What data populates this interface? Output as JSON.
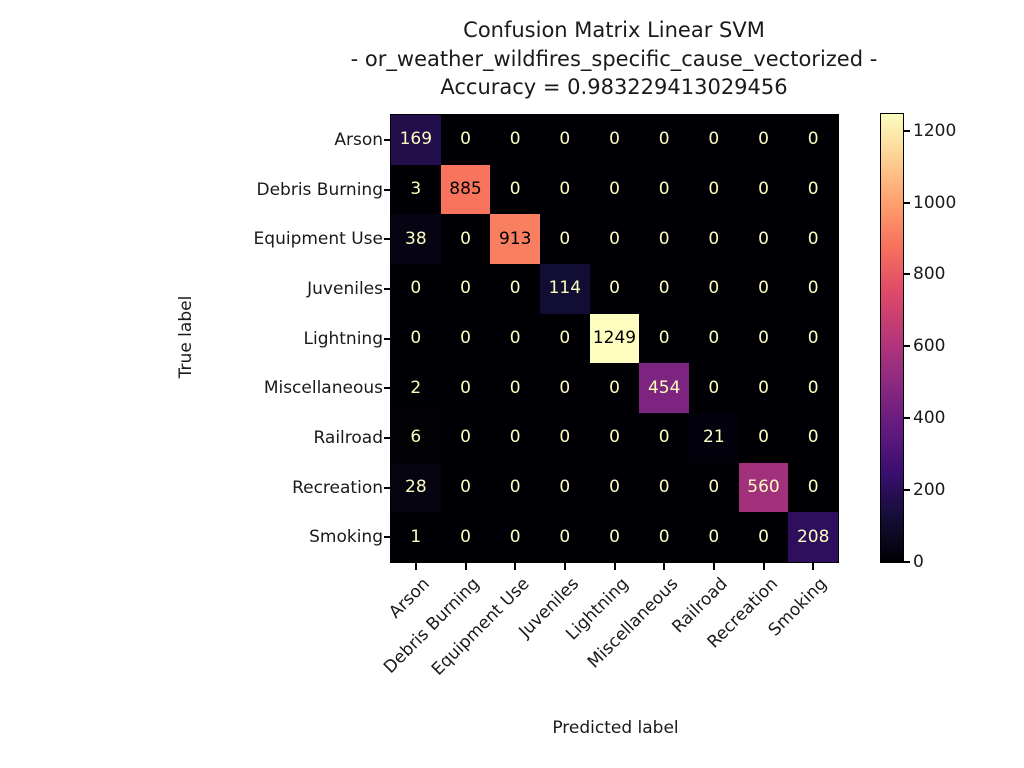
{
  "figure": {
    "title_line1": "Confusion Matrix Linear SVM",
    "title_line2": "- or_weather_wildfires_specific_cause_vectorized -",
    "title_line3": "Accuracy = 0.983229413029456",
    "xlabel": "Predicted label",
    "ylabel": "True label"
  },
  "chart_data": {
    "type": "heatmap",
    "title": "Confusion Matrix Linear SVM - or_weather_wildfires_specific_cause_vectorized - Accuracy = 0.983229413029456",
    "model": "Linear SVM",
    "accuracy_shown": "0.983229413029456",
    "xlabel": "Predicted label",
    "ylabel": "True label",
    "categories": [
      "Arson",
      "Debris Burning",
      "Equipment Use",
      "Juveniles",
      "Lightning",
      "Miscellaneous",
      "Railroad",
      "Recreation",
      "Smoking"
    ],
    "matrix": [
      [
        169,
        0,
        0,
        0,
        0,
        0,
        0,
        0,
        0
      ],
      [
        3,
        885,
        0,
        0,
        0,
        0,
        0,
        0,
        0
      ],
      [
        38,
        0,
        913,
        0,
        0,
        0,
        0,
        0,
        0
      ],
      [
        0,
        0,
        0,
        114,
        0,
        0,
        0,
        0,
        0
      ],
      [
        0,
        0,
        0,
        0,
        1249,
        0,
        0,
        0,
        0
      ],
      [
        2,
        0,
        0,
        0,
        0,
        454,
        0,
        0,
        0
      ],
      [
        6,
        0,
        0,
        0,
        0,
        0,
        21,
        0,
        0
      ],
      [
        28,
        0,
        0,
        0,
        0,
        0,
        0,
        560,
        0
      ],
      [
        1,
        0,
        0,
        0,
        0,
        0,
        0,
        0,
        208
      ]
    ],
    "vmin": 0,
    "vmax": 1249,
    "colormap": "magma",
    "colormap_stops": [
      "#000004",
      "#140e36",
      "#3b0f70",
      "#641a80",
      "#8c2981",
      "#b73779",
      "#de4968",
      "#f7705c",
      "#fe9f6d",
      "#fecf92",
      "#fcfdbf"
    ],
    "cell_text_color_light": "#fcfdbf",
    "cell_text_color_dark": "#000004",
    "colorbar_ticks": [
      0,
      200,
      400,
      600,
      800,
      1000,
      1200
    ],
    "grid": false,
    "legend": "colorbar-right"
  }
}
